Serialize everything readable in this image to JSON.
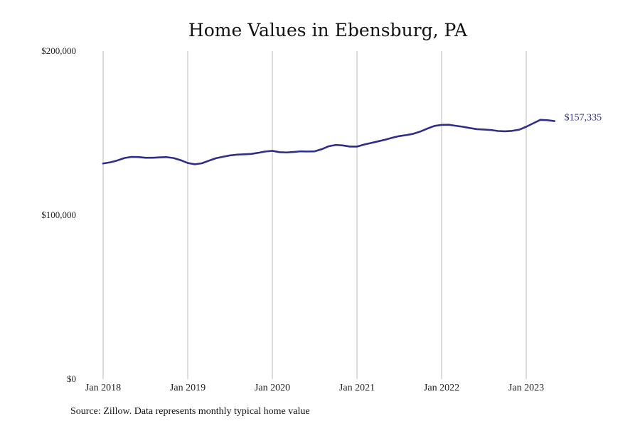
{
  "chart_data": {
    "type": "line",
    "title": "Home Values in Ebensburg, PA",
    "xlabel": "",
    "ylabel": "",
    "ylim": [
      0,
      200000
    ],
    "yticks": [
      0,
      100000,
      200000
    ],
    "ytick_labels": [
      "$0",
      "$100,000",
      "$200,000"
    ],
    "xticks": [
      "2018-01",
      "2019-01",
      "2020-01",
      "2021-01",
      "2022-01",
      "2023-01"
    ],
    "xtick_labels": [
      "Jan 2018",
      "Jan 2019",
      "Jan 2020",
      "Jan 2021",
      "Jan 2022",
      "Jan 2023"
    ],
    "x_range": [
      "2018-01",
      "2023-05"
    ],
    "grid": "vertical",
    "line_color": "#2e2e8a",
    "series": [
      {
        "name": "",
        "x": [
          "2018-01",
          "2018-02",
          "2018-03",
          "2018-04",
          "2018-05",
          "2018-06",
          "2018-07",
          "2018-08",
          "2018-09",
          "2018-10",
          "2018-11",
          "2018-12",
          "2019-01",
          "2019-02",
          "2019-03",
          "2019-04",
          "2019-05",
          "2019-06",
          "2019-07",
          "2019-08",
          "2019-09",
          "2019-10",
          "2019-11",
          "2019-12",
          "2020-01",
          "2020-02",
          "2020-03",
          "2020-04",
          "2020-05",
          "2020-06",
          "2020-07",
          "2020-08",
          "2020-09",
          "2020-10",
          "2020-11",
          "2020-12",
          "2021-01",
          "2021-02",
          "2021-03",
          "2021-04",
          "2021-05",
          "2021-06",
          "2021-07",
          "2021-08",
          "2021-09",
          "2021-10",
          "2021-11",
          "2021-12",
          "2022-01",
          "2022-02",
          "2022-03",
          "2022-04",
          "2022-05",
          "2022-06",
          "2022-07",
          "2022-08",
          "2022-09",
          "2022-10",
          "2022-11",
          "2022-12",
          "2023-01",
          "2023-02",
          "2023-03",
          "2023-04",
          "2023-05"
        ],
        "values": [
          131500,
          132200,
          133300,
          134800,
          135500,
          135400,
          135000,
          135000,
          135200,
          135400,
          134800,
          133500,
          131800,
          131000,
          131600,
          133200,
          134700,
          135600,
          136400,
          136900,
          137100,
          137300,
          138000,
          138800,
          139200,
          138400,
          138200,
          138500,
          138900,
          138800,
          138900,
          140200,
          142000,
          142800,
          142500,
          141800,
          141800,
          143000,
          144000,
          145000,
          146000,
          147200,
          148200,
          148800,
          149600,
          151000,
          152800,
          154400,
          155000,
          155100,
          154500,
          153900,
          153100,
          152400,
          152200,
          151900,
          151300,
          151100,
          151400,
          152100,
          153900,
          156000,
          158100,
          157900,
          157335
        ]
      }
    ],
    "end_label": "$157,335"
  },
  "source_text": "Source: Zillow. Data represents monthly typical home value"
}
